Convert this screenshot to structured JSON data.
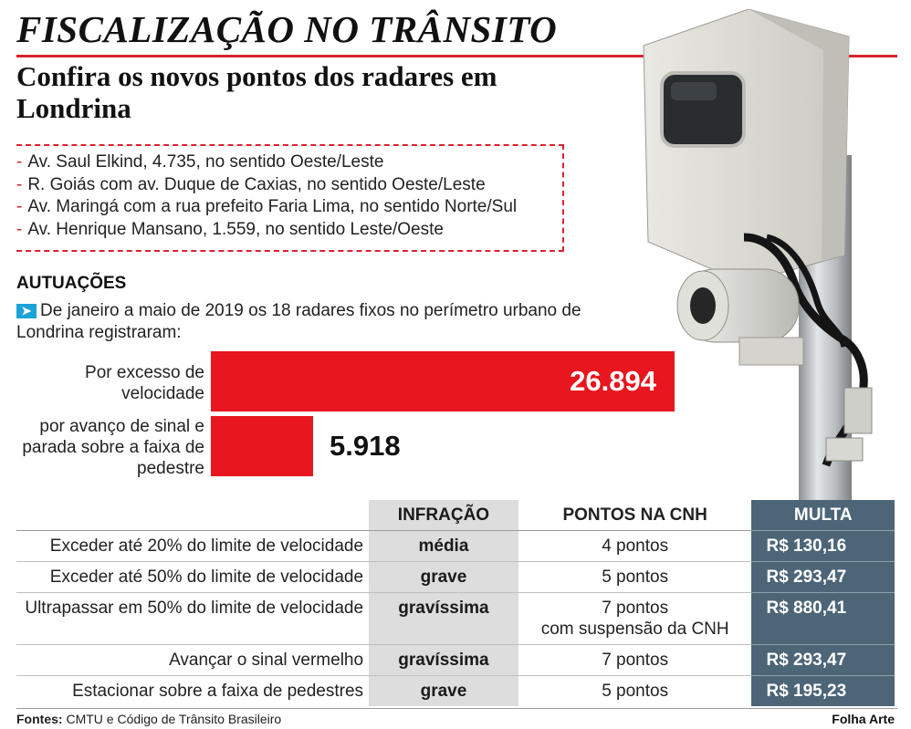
{
  "header": {
    "title": "FISCALIZAÇÃO NO TRÂNSITO",
    "subtitle": "Confira os novos pontos dos radares em Londrina"
  },
  "radar_points": [
    "Av. Saul Elkind, 4.735, no sentido Oeste/Leste",
    "R. Goiás com av. Duque de Caxias, no sentido Oeste/Leste",
    "Av. Maringá com a rua prefeito Faria Lima, no sentido Norte/Sul",
    "Av. Henrique Mansano, 1.559, no sentido Leste/Oeste"
  ],
  "autuacoes": {
    "title": "AUTUAÇÕES",
    "intro": "De janeiro a maio de 2019 os 18 radares fixos no perímetro urbano de Londrina registraram:"
  },
  "chart_data": {
    "type": "bar",
    "orientation": "horizontal",
    "categories": [
      "Por excesso de velocidade",
      "por avanço de sinal e parada sobre a faixa de pedestre"
    ],
    "values": [
      26894,
      5918
    ],
    "value_labels": [
      "26.894",
      "5.918"
    ],
    "color": "#e8161e"
  },
  "table": {
    "headers": {
      "infracao": "INFRAÇÃO",
      "pontos": "PONTOS NA CNH",
      "multa": "MULTA"
    },
    "rows": [
      {
        "desc": "Exceder até 20% do limite de velocidade",
        "infracao": "média",
        "pontos": "4 pontos",
        "pontos_extra": "",
        "multa": "R$ 130,16"
      },
      {
        "desc": "Exceder até 50% do limite de velocidade",
        "infracao": "grave",
        "pontos": "5 pontos",
        "pontos_extra": "",
        "multa": "R$ 293,47"
      },
      {
        "desc": "Ultrapassar em 50% do limite de velocidade",
        "infracao": "gravíssima",
        "pontos": "7 pontos",
        "pontos_extra": "com suspensão da CNH",
        "multa": "R$ 880,41"
      },
      {
        "desc": "Avançar o sinal vermelho",
        "infracao": "gravíssima",
        "pontos": "7 pontos",
        "pontos_extra": "",
        "multa": "R$ 293,47"
      },
      {
        "desc": "Estacionar sobre a faixa de pedestres",
        "infracao": "grave",
        "pontos": "5 pontos",
        "pontos_extra": "",
        "multa": "R$ 195,23"
      }
    ]
  },
  "footer": {
    "sources_label": "Fontes:",
    "sources": "CMTU e Código de Trânsito Brasileiro",
    "credit": "Folha Arte"
  },
  "colors": {
    "accent_red": "#d9232e",
    "bar_red": "#e8161e",
    "multa_blue": "#4c6577",
    "infracao_gray": "#dddddd",
    "arrow_blue": "#1ba3d8"
  },
  "icons": [
    "arrow-right-icon",
    "radar-camera-illustration"
  ]
}
